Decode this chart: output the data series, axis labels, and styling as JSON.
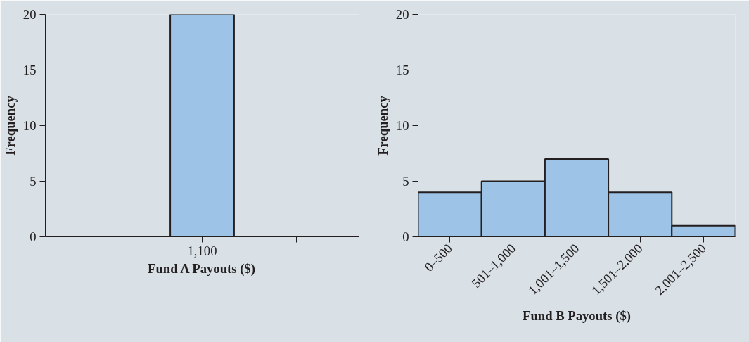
{
  "chart_data": [
    {
      "type": "bar",
      "categories": [
        null,
        "1,100",
        null
      ],
      "values": [
        null,
        20,
        null
      ],
      "color": "#9dc3e6",
      "xlabel": "Fund A Payouts ($)",
      "ylabel": "Frequency",
      "ylim": [
        0,
        20
      ],
      "yticks": [
        0,
        5,
        10,
        15,
        20
      ],
      "grid": false
    },
    {
      "type": "bar",
      "categories": [
        "0–500",
        "501–1,000",
        "1,001–1,500",
        "1,501–2,000",
        "2,001–2,500"
      ],
      "values": [
        4,
        5,
        7,
        4,
        1
      ],
      "color": "#9dc3e6",
      "xlabel": "Fund B Payouts ($)",
      "ylabel": "Frequency",
      "ylim": [
        0,
        20
      ],
      "yticks": [
        0,
        5,
        10,
        15,
        20
      ],
      "grid": false
    }
  ]
}
